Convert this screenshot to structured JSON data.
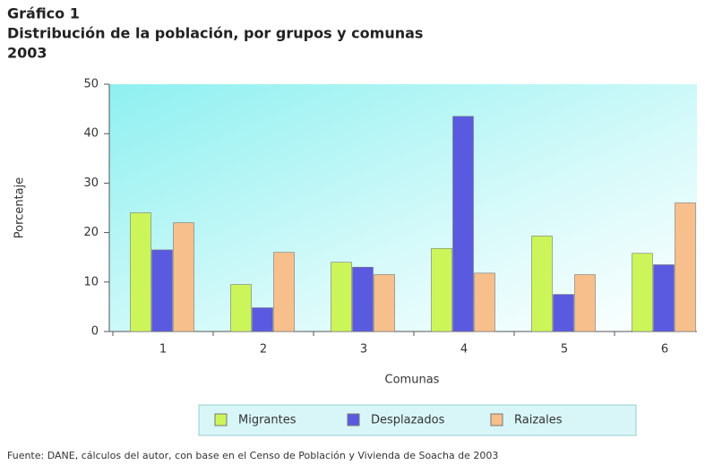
{
  "chart_data": {
    "type": "bar",
    "title": "Gráfico 1",
    "subtitle": "Distribución de la población, por grupos y comunas",
    "subtitle2": "2003",
    "y_label": "Porcentaje",
    "x_label": "Comunas",
    "source": "Fuente: DANE, cálculos del autor, con base en el Censo de Población y Vivienda de Soacha de 2003",
    "categories": [
      "1",
      "2",
      "3",
      "4",
      "5",
      "6"
    ],
    "series": [
      {
        "name": "Migrantes",
        "color": "#ccf55a",
        "values": [
          24,
          9.5,
          14,
          16.8,
          19.3,
          15.8
        ]
      },
      {
        "name": "Desplazados",
        "color": "#5a5ae0",
        "values": [
          16.5,
          4.8,
          13,
          43.5,
          7.5,
          13.5
        ]
      },
      {
        "name": "Raizales",
        "color": "#f7bf8c",
        "values": [
          22,
          16,
          11.5,
          11.8,
          11.5,
          26
        ]
      }
    ],
    "ylim": [
      0,
      50
    ],
    "yticks": [
      0,
      10,
      20,
      30,
      40,
      50
    ],
    "legend": "bottom"
  }
}
